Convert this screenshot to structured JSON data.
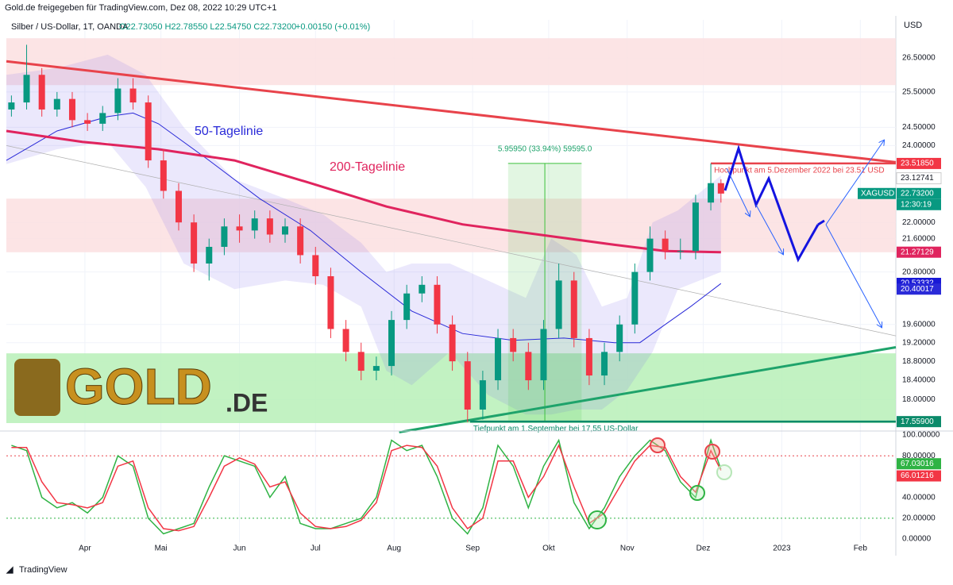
{
  "header": {
    "publisher": "Gold.de freigegeben für TradingView.com, Dez 08, 2022 10:29 UTC+1",
    "symbol": "Silber / US-Dollar, 1T, OANDA",
    "ohlc": "O22.73050 H22.78550 L22.54750 C22.73200",
    "change": "+0.00150 (+0.01%)"
  },
  "logo": {
    "main": "GOLD",
    "suffix": ".DE"
  },
  "footer": "TradingView",
  "chart_data": [
    {
      "type": "candlestick",
      "ylabel": "USD",
      "log_scale": true,
      "grid": true,
      "xlim": [
        0,
        351
      ],
      "ylim": [
        17.42,
        27.67
      ],
      "xticks": [
        {
          "value": 31,
          "label": "Apr"
        },
        {
          "value": 61,
          "label": "Mai"
        },
        {
          "value": 92,
          "label": "Jun"
        },
        {
          "value": 122,
          "label": "Jul"
        },
        {
          "value": 153,
          "label": "Aug"
        },
        {
          "value": 184,
          "label": "Sep"
        },
        {
          "value": 214,
          "label": "Okt"
        },
        {
          "value": 245,
          "label": "Nov"
        },
        {
          "value": 275,
          "label": "Dez"
        },
        {
          "value": 306,
          "label": "2023"
        },
        {
          "value": 337,
          "label": "Feb"
        }
      ],
      "yticks": [
        {
          "value": 26.5,
          "label": "26.50000"
        },
        {
          "value": 25.5,
          "label": "25.50000"
        },
        {
          "value": 24.5,
          "label": "24.50000"
        },
        {
          "value": 24,
          "label": "24.00000"
        },
        {
          "value": 22,
          "label": "22.00000"
        },
        {
          "value": 21.6,
          "label": "21.60000"
        },
        {
          "value": 20.8,
          "label": "20.80000"
        },
        {
          "value": 19.6,
          "label": "19.60000"
        },
        {
          "value": 19.2,
          "label": "19.20000"
        },
        {
          "value": 18.8,
          "label": "18.80000"
        },
        {
          "value": 18.4,
          "label": "18.40000"
        },
        {
          "value": 18,
          "label": "18.00000"
        }
      ],
      "up_color": "#089981",
      "down_color": "#f23645",
      "x": [
        2,
        8,
        14,
        20,
        26,
        32,
        38,
        44,
        50,
        56,
        62,
        68,
        74,
        80,
        86,
        92,
        98,
        104,
        110,
        116,
        122,
        128,
        134,
        140,
        146,
        152,
        158,
        164,
        170,
        176,
        182,
        188,
        194,
        200,
        206,
        212,
        218,
        224,
        230,
        236,
        242,
        248,
        254,
        260,
        266,
        272,
        278,
        282
      ],
      "open": [
        25.0,
        25.2,
        26.0,
        25.0,
        25.3,
        24.7,
        24.6,
        24.9,
        25.6,
        25.2,
        23.6,
        22.8,
        22.0,
        21.0,
        21.4,
        21.9,
        21.8,
        22.1,
        21.7,
        21.9,
        21.2,
        20.7,
        19.5,
        19.0,
        18.6,
        18.7,
        19.7,
        20.3,
        20.5,
        19.6,
        18.8,
        17.8,
        18.4,
        19.3,
        19.0,
        18.4,
        19.5,
        20.6,
        19.3,
        18.5,
        19.0,
        19.6,
        20.8,
        21.6,
        21.3,
        21.3,
        22.5,
        23.0
      ],
      "high": [
        25.4,
        26.9,
        26.2,
        25.5,
        25.5,
        24.9,
        25.1,
        25.9,
        25.9,
        25.4,
        23.9,
        23.0,
        22.2,
        21.6,
        22.1,
        22.2,
        22.3,
        22.3,
        22.1,
        22.1,
        21.4,
        20.9,
        19.7,
        19.2,
        18.9,
        19.9,
        20.5,
        20.7,
        20.7,
        19.8,
        19.0,
        18.6,
        19.5,
        19.5,
        19.2,
        19.7,
        21.0,
        20.8,
        19.5,
        19.2,
        19.8,
        21.0,
        21.9,
        21.8,
        21.6,
        22.7,
        23.52,
        23.1
      ],
      "low": [
        24.8,
        25.0,
        24.8,
        24.8,
        24.5,
        24.4,
        24.4,
        24.7,
        25.0,
        23.4,
        22.6,
        21.8,
        20.8,
        20.6,
        21.2,
        21.5,
        21.6,
        21.5,
        21.5,
        21.0,
        20.5,
        19.3,
        18.8,
        18.4,
        18.4,
        18.5,
        19.5,
        20.1,
        19.4,
        18.6,
        17.55,
        17.6,
        18.2,
        18.8,
        18.2,
        18.2,
        19.3,
        19.1,
        18.3,
        18.3,
        18.8,
        19.4,
        20.6,
        21.1,
        21.1,
        21.1,
        22.3,
        22.5
      ],
      "close": [
        25.2,
        26.0,
        25.0,
        25.3,
        24.7,
        24.6,
        24.9,
        25.6,
        25.2,
        23.6,
        22.8,
        22.0,
        21.0,
        21.4,
        21.9,
        21.8,
        22.1,
        21.7,
        21.9,
        21.2,
        20.7,
        19.5,
        19.0,
        18.6,
        18.7,
        19.7,
        20.3,
        20.5,
        19.6,
        18.8,
        17.8,
        18.4,
        19.3,
        19.0,
        18.4,
        19.5,
        20.6,
        19.3,
        18.5,
        19.0,
        19.6,
        20.8,
        21.6,
        21.3,
        21.3,
        22.5,
        23.0,
        22.73
      ],
      "band": {
        "color": "#7b68ee",
        "x": [
          0,
          20,
          40,
          55,
          70,
          90,
          110,
          125,
          140,
          150,
          160,
          175,
          190,
          205,
          215,
          225,
          235,
          245,
          255,
          265,
          282
        ],
        "upper": [
          26.0,
          26.2,
          26.6,
          26.0,
          24.5,
          23.1,
          22.6,
          22.2,
          21.5,
          20.8,
          21.0,
          21.0,
          20.6,
          20.2,
          21.6,
          21.2,
          20.0,
          20.2,
          22.0,
          22.3,
          23.2
        ],
        "lower": [
          23.5,
          23.9,
          24.1,
          22.9,
          21.0,
          20.4,
          20.6,
          20.5,
          20.0,
          18.6,
          18.3,
          19.0,
          18.1,
          17.7,
          17.7,
          17.8,
          17.8,
          18.2,
          19.0,
          20.4,
          20.8
        ]
      },
      "overlays": [
        {
          "label": "50-Tagelinie",
          "color": "#2a2ad8",
          "width": 1,
          "x": [
            0,
            20,
            40,
            50,
            60,
            80,
            100,
            120,
            140,
            160,
            180,
            200,
            220,
            240,
            250,
            260,
            270,
            282
          ],
          "values": [
            23.6,
            24.4,
            24.8,
            24.9,
            24.6,
            23.6,
            22.6,
            21.8,
            20.8,
            19.9,
            19.4,
            19.25,
            19.3,
            19.2,
            19.2,
            19.6,
            20.0,
            20.53
          ]
        },
        {
          "label": "200-Tagelinie",
          "color": "#e0245e",
          "width": 3,
          "x": [
            0,
            30,
            60,
            90,
            120,
            150,
            180,
            210,
            240,
            260,
            282
          ],
          "values": [
            24.4,
            24.1,
            23.9,
            23.6,
            23.0,
            22.4,
            21.95,
            21.7,
            21.45,
            21.3,
            21.27
          ]
        }
      ],
      "zones": [
        {
          "from": 25.7,
          "to": 27.1,
          "color": "#fbdfe1"
        },
        {
          "from": 21.27,
          "to": 22.6,
          "color": "#fbdfe1"
        },
        {
          "from": 17.53,
          "to": 18.97,
          "color": "#b7f0b7"
        }
      ],
      "trendlines": [
        {
          "x": [
            0,
            351
          ],
          "values": [
            26.4,
            23.55
          ],
          "color": "#e8434b",
          "width": 3
        },
        {
          "x": [
            155,
            351
          ],
          "values": [
            17.35,
            19.1
          ],
          "color": "#1ea36b",
          "width": 3
        },
        {
          "x": [
            0,
            351
          ],
          "values": [
            24.0,
            19.35
          ],
          "color": "#b0b0b0",
          "width": 0.7
        }
      ],
      "levels": [
        {
          "value": 23.5185,
          "from_x": 278,
          "color": "#e8434b",
          "label": "Hochpunkt am 5.Dezember 2022 bei 23.51 USD"
        },
        {
          "value": 17.559,
          "from_x": 183,
          "color": "#0b8a6a",
          "label": "Tiefpunkt am 1.September bei 17,55 US-Dollar"
        }
      ],
      "measure": {
        "x": [
          198,
          227
        ],
        "low": 17.559,
        "high": 23.5185,
        "color": "#3cc13c",
        "label": "5.95950 (33.94%) 59595.0"
      },
      "price_labels": [
        {
          "value": 23.5185,
          "label": "23.51850",
          "color": "#f23645",
          "text_color": "#ffffff"
        },
        {
          "value": 23.12741,
          "label": "23.12741",
          "color": "#ffffff",
          "text_color": "#131722"
        },
        {
          "value": 22.732,
          "label": "22.73200",
          "color": "#089981",
          "text_color": "#ffffff"
        },
        {
          "value": 21.27129,
          "label": "21.27129",
          "color": "#e0245e",
          "text_color": "#ffffff"
        },
        {
          "value": 20.53332,
          "label": "20.53332",
          "color": "#1818d6",
          "text_color": "#ffffff"
        },
        {
          "value": 20.40017,
          "label": "20.40017",
          "color": "#2a2ad8",
          "text_color": "#ffffff"
        },
        {
          "value": 17.559,
          "label": "17.55900",
          "color": "#0b8a6a",
          "text_color": "#ffffff"
        }
      ],
      "symbol_tag": "XAGUSD",
      "countdown": "12:30:19"
    },
    {
      "type": "line",
      "xlim": [
        0,
        351
      ],
      "ylim": [
        -3,
        102.3
      ],
      "yticks": [
        {
          "value": 100,
          "label": "100.00000"
        },
        {
          "value": 80,
          "label": "80.00000"
        },
        {
          "value": 60,
          "label": "60.00000"
        },
        {
          "value": 40,
          "label": "40.00000"
        },
        {
          "value": 20,
          "label": "20.00000"
        },
        {
          "value": 0,
          "label": "0.00000"
        }
      ],
      "levels": [
        {
          "value": 80,
          "color": "#e8434b"
        },
        {
          "value": 20,
          "color": "#2fb344"
        }
      ],
      "x": [
        2,
        8,
        14,
        20,
        26,
        32,
        38,
        44,
        50,
        56,
        62,
        68,
        74,
        80,
        86,
        92,
        98,
        104,
        110,
        116,
        122,
        128,
        134,
        140,
        146,
        152,
        158,
        164,
        170,
        176,
        182,
        188,
        194,
        200,
        206,
        212,
        218,
        224,
        230,
        236,
        242,
        248,
        254,
        260,
        266,
        272,
        278,
        282
      ],
      "series": [
        {
          "color": "#2fb344",
          "values": [
            90,
            85,
            40,
            30,
            35,
            25,
            40,
            80,
            70,
            20,
            5,
            10,
            15,
            50,
            80,
            75,
            70,
            40,
            60,
            15,
            10,
            10,
            15,
            20,
            40,
            95,
            85,
            90,
            60,
            20,
            5,
            30,
            90,
            70,
            30,
            70,
            95,
            35,
            10,
            30,
            60,
            80,
            95,
            85,
            55,
            40,
            95,
            67.03016
          ]
        },
        {
          "color": "#f23645",
          "values": [
            88,
            88,
            55,
            35,
            33,
            30,
            35,
            70,
            75,
            30,
            10,
            8,
            12,
            40,
            70,
            78,
            72,
            50,
            55,
            25,
            12,
            10,
            12,
            18,
            35,
            85,
            90,
            88,
            70,
            30,
            10,
            20,
            75,
            75,
            40,
            60,
            90,
            50,
            15,
            25,
            50,
            75,
            90,
            88,
            60,
            45,
            85,
            66.01216
          ]
        }
      ]
    }
  ]
}
